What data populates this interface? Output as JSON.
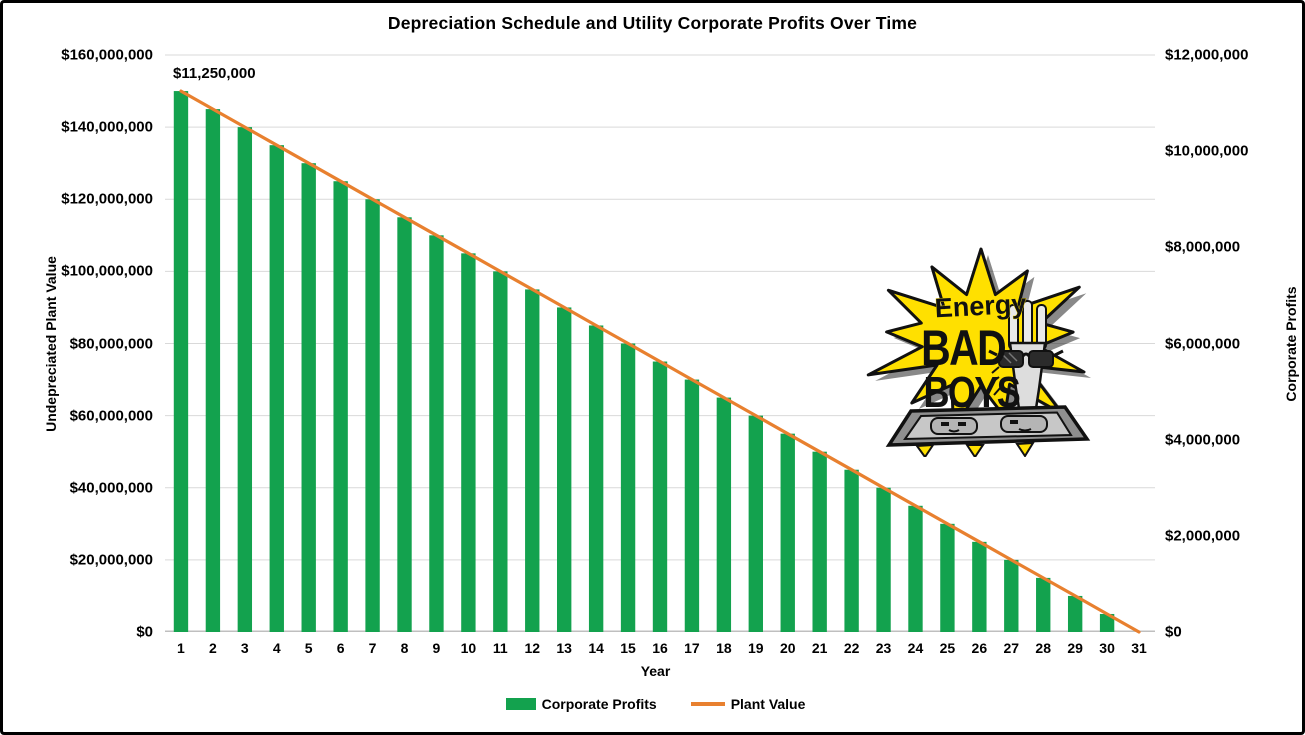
{
  "chart_data": {
    "type": "bar",
    "title": "Depreciation Schedule and Utility Corporate Profits Over Time",
    "xlabel": "Year",
    "ylabel_left": "Undepreciated Plant Value",
    "ylabel_right": "Corporate Profits",
    "grid": true,
    "legend_position": "bottom",
    "categories": [
      "1",
      "2",
      "3",
      "4",
      "5",
      "6",
      "7",
      "8",
      "9",
      "10",
      "11",
      "12",
      "13",
      "14",
      "15",
      "16",
      "17",
      "18",
      "19",
      "20",
      "21",
      "22",
      "23",
      "24",
      "25",
      "26",
      "27",
      "28",
      "29",
      "30",
      "31"
    ],
    "series": [
      {
        "name": "Corporate Profits",
        "type": "bar",
        "axis": "right",
        "color": "#13A24E",
        "values": [
          11250000,
          10875000,
          10500000,
          10125000,
          9750000,
          9375000,
          9000000,
          8625000,
          8250000,
          7875000,
          7500000,
          7125000,
          6750000,
          6375000,
          6000000,
          5625000,
          5250000,
          4875000,
          4500000,
          4125000,
          3750000,
          3375000,
          3000000,
          2625000,
          2250000,
          1875000,
          1500000,
          1125000,
          750000,
          375000,
          0
        ]
      },
      {
        "name": "Plant Value",
        "type": "line",
        "axis": "left",
        "color": "#E8802F",
        "values": [
          150000000,
          145000000,
          140000000,
          135000000,
          130000000,
          125000000,
          120000000,
          115000000,
          110000000,
          105000000,
          100000000,
          95000000,
          90000000,
          85000000,
          80000000,
          75000000,
          70000000,
          65000000,
          60000000,
          55000000,
          50000000,
          45000000,
          40000000,
          35000000,
          30000000,
          25000000,
          20000000,
          15000000,
          10000000,
          5000000,
          0
        ]
      }
    ],
    "left_axis": {
      "min": 0,
      "max": 160000000,
      "step": 20000000,
      "tick_labels": [
        "$160,000,000",
        "$140,000,000",
        "$120,000,000",
        "$100,000,000",
        "$80,000,000",
        "$60,000,000",
        "$40,000,000",
        "$20,000,000",
        "$0"
      ]
    },
    "right_axis": {
      "min": 0,
      "max": 12000000,
      "step": 2000000,
      "tick_labels": [
        "$12,000,000",
        "$10,000,000",
        "$8,000,000",
        "$6,000,000",
        "$4,000,000",
        "$2,000,000",
        "$0"
      ]
    },
    "annotation": {
      "text": "$11,250,000",
      "target": "first bar / line start"
    },
    "gridline_color": "#D9D9D9",
    "axisline_color": "#BFBFBF"
  },
  "logo": {
    "line1": "Energy",
    "line2": "BAD",
    "line3": "BOYS",
    "star_color": "#FFE000",
    "outlet_color": "#9E9E9E"
  }
}
